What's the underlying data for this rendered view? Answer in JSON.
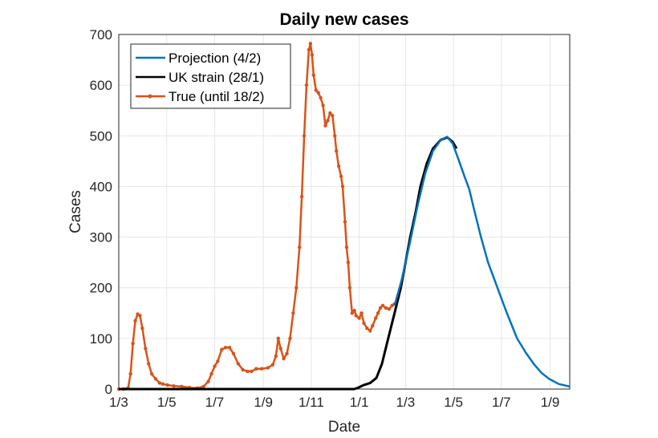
{
  "chart_data": {
    "type": "line",
    "title": "Daily new cases",
    "xlabel": "Date",
    "ylabel": "Cases",
    "ylim": [
      0,
      700
    ],
    "xlim_days_since_1_3_2020": [
      0,
      574
    ],
    "grid": true,
    "legend_placement": "top-left",
    "yticks": [
      0,
      100,
      200,
      300,
      400,
      500,
      600,
      700
    ],
    "xticks": [
      {
        "day": 0,
        "label": "1/3"
      },
      {
        "day": 61,
        "label": "1/5"
      },
      {
        "day": 122,
        "label": "1/7"
      },
      {
        "day": 184,
        "label": "1/9"
      },
      {
        "day": 245,
        "label": "1/11"
      },
      {
        "day": 306,
        "label": "1/1"
      },
      {
        "day": 365,
        "label": "1/3"
      },
      {
        "day": 426,
        "label": "1/5"
      },
      {
        "day": 487,
        "label": "1/7"
      },
      {
        "day": 549,
        "label": "1/9"
      }
    ],
    "series": [
      {
        "name": "Projection (4/2)",
        "color": "#0072BD",
        "markers": false,
        "x": [
          351,
          360,
          370,
          380,
          390,
          400,
          410,
          418,
          425,
          432,
          440,
          446,
          453,
          461,
          470,
          482,
          494,
          507,
          518,
          528,
          538,
          548,
          560,
          574
        ],
        "y": [
          165,
          215,
          285,
          360,
          425,
          470,
          492,
          498,
          485,
          455,
          420,
          395,
          350,
          300,
          250,
          200,
          150,
          100,
          72,
          50,
          32,
          20,
          10,
          5
        ]
      },
      {
        "name": "UK strain (28/1)",
        "color": "#000000",
        "markers": false,
        "x": [
          0,
          300,
          305,
          312,
          320,
          328,
          335,
          343,
          351,
          359,
          365,
          371,
          378,
          384,
          392,
          400,
          410,
          418,
          425,
          430
        ],
        "y": [
          0,
          0,
          3,
          8,
          12,
          22,
          50,
          100,
          150,
          200,
          250,
          300,
          350,
          400,
          445,
          475,
          492,
          497,
          488,
          475
        ]
      },
      {
        "name": "True (until 18/2)",
        "color": "#D95319",
        "markers": true,
        "x": [
          0,
          6,
          12,
          15,
          18,
          21,
          24,
          27,
          30,
          34,
          38,
          42,
          47,
          52,
          56,
          62,
          70,
          80,
          90,
          100,
          108,
          114,
          118,
          122,
          126,
          131,
          136,
          141,
          146,
          152,
          158,
          164,
          169,
          175,
          182,
          190,
          196,
          200,
          203,
          206,
          210,
          214,
          218,
          222,
          226,
          230,
          233,
          236,
          239,
          242,
          244,
          246,
          248,
          251,
          254,
          257,
          260,
          263,
          266,
          269,
          272,
          275,
          277,
          280,
          283,
          285,
          288,
          290,
          292,
          294,
          297,
          300,
          302,
          306,
          309,
          312,
          316,
          320,
          323,
          327,
          330,
          333,
          336,
          340,
          344,
          348,
          351
        ],
        "y": [
          0,
          0,
          2,
          30,
          90,
          135,
          148,
          145,
          120,
          80,
          50,
          30,
          20,
          12,
          10,
          8,
          6,
          5,
          3,
          2,
          5,
          15,
          30,
          45,
          55,
          78,
          82,
          82,
          70,
          50,
          38,
          35,
          35,
          40,
          40,
          42,
          48,
          65,
          100,
          80,
          60,
          70,
          100,
          150,
          200,
          280,
          380,
          500,
          600,
          670,
          682,
          660,
          620,
          590,
          585,
          575,
          560,
          520,
          530,
          545,
          540,
          500,
          470,
          440,
          420,
          400,
          330,
          280,
          250,
          200,
          150,
          155,
          145,
          140,
          150,
          130,
          120,
          115,
          125,
          140,
          150,
          160,
          165,
          160,
          158,
          165,
          168
        ]
      }
    ]
  }
}
